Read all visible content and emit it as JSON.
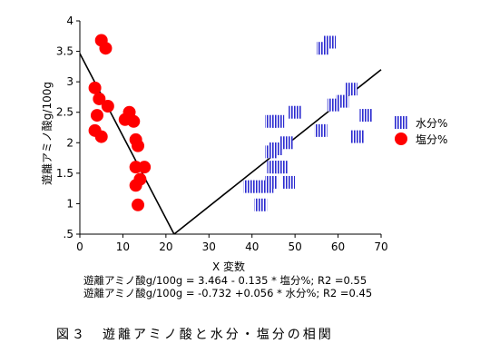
{
  "figure_caption": "図３　遊離アミノ酸と水分・塩分の相関",
  "chart_data": {
    "type": "scatter",
    "xlabel": "X 変数",
    "ylabel": "遊離アミノ酸g/100g",
    "xlim": [
      0,
      70
    ],
    "ylim": [
      0.5,
      4
    ],
    "x_ticks": [
      0,
      10,
      20,
      30,
      40,
      50,
      60,
      70
    ],
    "x_tick_labels": [
      "0",
      "10",
      "20",
      "30",
      "40",
      "50",
      "60",
      "70"
    ],
    "y_ticks": [
      0.5,
      1,
      1.5,
      2,
      2.5,
      3,
      3.5,
      4
    ],
    "y_tick_labels": [
      ".5",
      "1",
      "1.5",
      "2",
      "2.5",
      "3",
      "3.5",
      "4"
    ],
    "legend_position": "right",
    "series": [
      {
        "name": "水分%",
        "marker": "square-hatched",
        "color": "#2a2ad0",
        "points": [
          [
            39.5,
            1.28
          ],
          [
            41,
            1.28
          ],
          [
            43.5,
            1.28
          ],
          [
            44.5,
            1.35
          ],
          [
            45,
            1.6
          ],
          [
            47,
            1.6
          ],
          [
            48.5,
            1.35
          ],
          [
            46,
            1.6
          ],
          [
            42,
            0.98
          ],
          [
            44.5,
            1.85
          ],
          [
            45.5,
            1.9
          ],
          [
            48,
            2.0
          ],
          [
            44.5,
            2.35
          ],
          [
            46,
            2.35
          ],
          [
            50,
            2.5
          ],
          [
            56,
            2.2
          ],
          [
            59,
            2.62
          ],
          [
            61,
            2.68
          ],
          [
            63,
            2.88
          ],
          [
            64.5,
            2.1
          ],
          [
            66.5,
            2.45
          ],
          [
            56.5,
            3.55
          ],
          [
            58,
            3.65
          ]
        ]
      },
      {
        "name": "塩分%",
        "marker": "circle",
        "color": "#ff0000",
        "points": [
          [
            5,
            3.68
          ],
          [
            6,
            3.55
          ],
          [
            3.5,
            2.9
          ],
          [
            4.5,
            2.72
          ],
          [
            6.5,
            2.6
          ],
          [
            4,
            2.45
          ],
          [
            11.5,
            2.5
          ],
          [
            10.5,
            2.38
          ],
          [
            12.5,
            2.35
          ],
          [
            3.5,
            2.2
          ],
          [
            5,
            2.1
          ],
          [
            13,
            2.05
          ],
          [
            13.5,
            1.95
          ],
          [
            13,
            1.6
          ],
          [
            15,
            1.6
          ],
          [
            14,
            1.4
          ],
          [
            13,
            1.3
          ],
          [
            13.5,
            0.98
          ]
        ]
      }
    ],
    "fit_lines": [
      {
        "name": "salt",
        "points": [
          [
            0,
            3.464
          ],
          [
            21.9,
            0.5
          ]
        ]
      },
      {
        "name": "water",
        "points": [
          [
            21.9,
            0.5
          ],
          [
            70,
            3.2
          ]
        ]
      }
    ],
    "equations": [
      "遊離アミノ酸g/100g = 3.464 - 0.135 * 塩分%; R2 =0.55",
      "遊離アミノ酸g/100g = -0.732 +0.056 * 水分%; R2 =0.45"
    ]
  }
}
